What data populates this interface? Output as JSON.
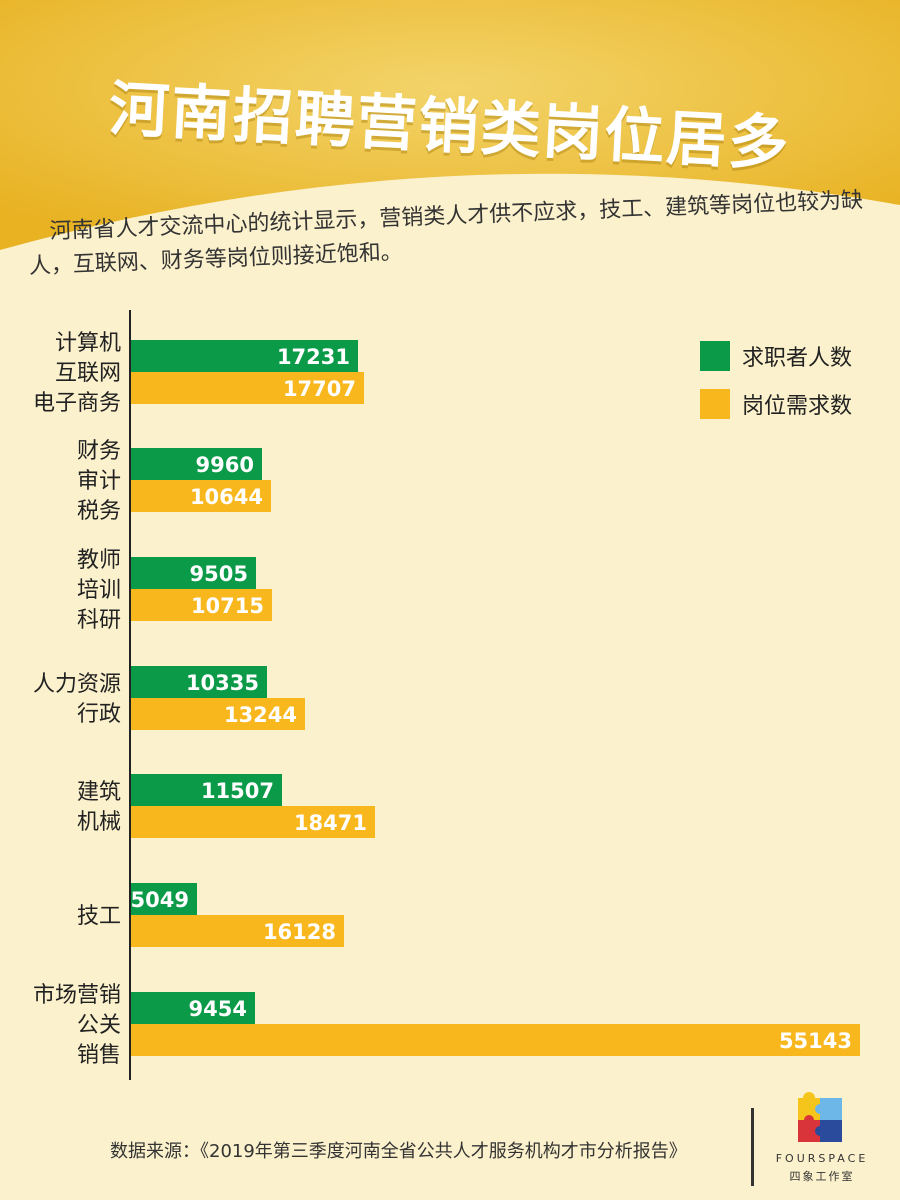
{
  "title": "河南招聘营销类岗位居多",
  "subtitle": "河南省人才交流中心的统计显示，营销类人才供不应求，技工、建筑等岗位也较为缺人，互联网、财务等岗位则接近饱和。",
  "colors": {
    "header": "#ecb92a",
    "background": "#fbf1cc",
    "job_seekers": "#0b9a48",
    "job_demand": "#f9b71e",
    "axis": "#222222"
  },
  "legend": {
    "job_seekers": "求职者人数",
    "job_demand": "岗位需求数"
  },
  "chart_data": {
    "type": "bar",
    "orientation": "horizontal",
    "categories": [
      [
        "计算机",
        "互联网",
        "电子商务"
      ],
      [
        "财务",
        "审计",
        "税务"
      ],
      [
        "教师",
        "培训",
        "科研"
      ],
      [
        "人力资源",
        "行政"
      ],
      [
        "建筑",
        "机械"
      ],
      [
        "技工"
      ],
      [
        "市场营销",
        "公关",
        "销售"
      ]
    ],
    "series": [
      {
        "name": "求职者人数",
        "values": [
          17231,
          9960,
          9505,
          10335,
          11507,
          5049,
          9454
        ]
      },
      {
        "name": "岗位需求数",
        "values": [
          17707,
          10644,
          10715,
          13244,
          18471,
          16128,
          55143
        ]
      }
    ],
    "legend_position": "top-right",
    "grid": false,
    "data_labels": true
  },
  "source": "数据来源：《2019年第三季度河南全省公共人才服务机构才市分析报告》",
  "logo": {
    "name": "FOURSPACE",
    "subtitle": "四象工作室"
  }
}
